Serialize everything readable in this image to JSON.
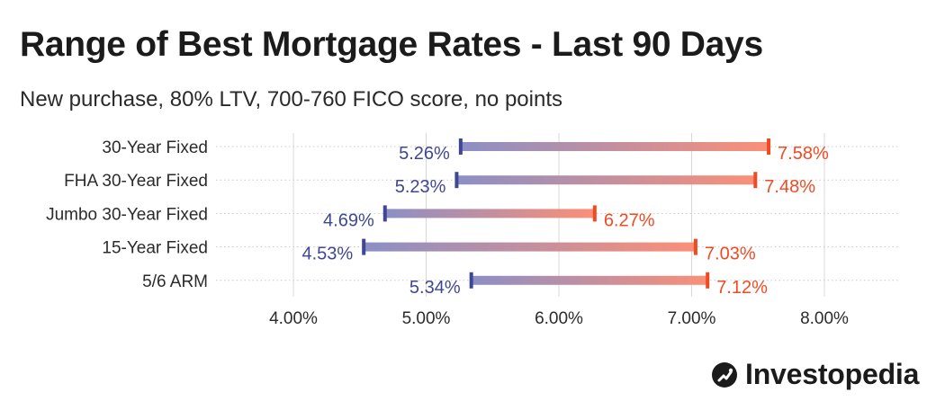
{
  "title": "Range of Best Mortgage Rates - Last 90 Days",
  "subtitle": "New purchase, 80% LTV, 700-760 FICO score, no points",
  "brand": "Investopedia",
  "colors": {
    "low": "#3f4794",
    "high": "#f04a23",
    "bar_start": "#8c8fc6",
    "bar_end": "#fb8f77",
    "grid": "#d8d8d8"
  },
  "chart_data": {
    "type": "bar",
    "orientation": "horizontal-range",
    "title": "Range of Best Mortgage Rates - Last 90 Days",
    "subtitle": "New purchase, 80% LTV, 700-760 FICO score, no points",
    "categories": [
      "30-Year Fixed",
      "FHA 30-Year Fixed",
      "Jumbo 30-Year Fixed",
      "15-Year Fixed",
      "5/6 ARM"
    ],
    "series": [
      {
        "name": "",
        "values": [
          5.26,
          5.23,
          4.69,
          4.53,
          5.34
        ],
        "labels": [
          "5.26%",
          "5.23%",
          "4.69%",
          "4.53%",
          "5.34%"
        ]
      },
      {
        "name": "",
        "values": [
          7.58,
          7.48,
          6.27,
          7.03,
          7.12
        ],
        "labels": [
          "7.58%",
          "7.48%",
          "6.27%",
          "7.03%",
          "7.12%"
        ]
      }
    ],
    "xlim": [
      3.0,
      8.55
    ],
    "xticks": [
      4.0,
      5.0,
      6.0,
      7.0,
      8.0
    ],
    "xtick_labels": [
      "4.00%",
      "5.00%",
      "6.00%",
      "7.00%",
      "8.00%"
    ],
    "xlabel": "",
    "ylabel": "",
    "grid": true
  }
}
